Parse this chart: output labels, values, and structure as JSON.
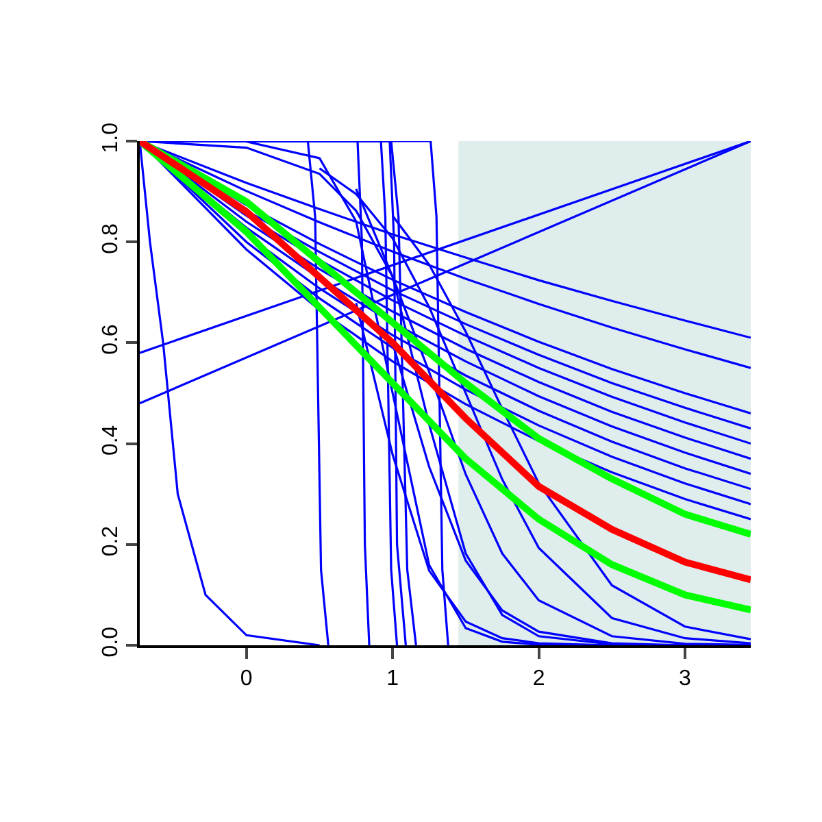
{
  "chart_data": {
    "type": "line",
    "x": [
      -0.73,
      0,
      0.5,
      1,
      1.5,
      2,
      2.5,
      3,
      3.45
    ],
    "xlim": [
      -0.73,
      3.45
    ],
    "xticks": [
      0,
      1,
      2,
      3
    ],
    "ylim": [
      0,
      1
    ],
    "yticks": [
      {
        "value": 0,
        "label": "0.0"
      },
      {
        "value": 0.2,
        "label": "0.2"
      },
      {
        "value": 0.4,
        "label": "0.4"
      },
      {
        "value": 0.6,
        "label": "0.6"
      },
      {
        "value": 0.8,
        "label": "0.8"
      },
      {
        "value": 1,
        "label": "1.0"
      }
    ],
    "grid": false,
    "marker": "none",
    "line_style": "solid",
    "bands": [
      {
        "axis": "x",
        "from": 1.45,
        "to": 3.45,
        "color": "#e0eded"
      }
    ],
    "series": [
      {
        "color": "#0000ff",
        "values": [
          1,
          0.917,
          0.865,
          0.815,
          0.769,
          0.724,
          0.683,
          0.644,
          0.61
        ]
      },
      {
        "color": "#0000ff",
        "values": [
          1,
          0.901,
          0.839,
          0.781,
          0.727,
          0.677,
          0.63,
          0.587,
          0.55
        ]
      },
      {
        "color": "#0000ff",
        "values": [
          1,
          0.873,
          0.796,
          0.725,
          0.661,
          0.602,
          0.548,
          0.5,
          0.46
        ]
      },
      {
        "color": "#0000ff",
        "values": [
          1,
          0.862,
          0.78,
          0.704,
          0.637,
          0.576,
          0.52,
          0.471,
          0.43
        ]
      },
      {
        "color": "#0000ff",
        "values": [
          1,
          0.852,
          0.764,
          0.684,
          0.614,
          0.55,
          0.493,
          0.442,
          0.4
        ]
      },
      {
        "color": "#0000ff",
        "values": [
          1,
          0.84,
          0.746,
          0.662,
          0.588,
          0.522,
          0.463,
          0.412,
          0.37
        ]
      },
      {
        "color": "#0000ff",
        "values": [
          1,
          0.828,
          0.728,
          0.64,
          0.563,
          0.494,
          0.434,
          0.382,
          0.34
        ]
      },
      {
        "color": "#0000ff",
        "values": [
          1,
          0.814,
          0.708,
          0.615,
          0.535,
          0.465,
          0.404,
          0.351,
          0.31
        ]
      },
      {
        "color": "#0000ff",
        "values": [
          1,
          0.8,
          0.688,
          0.59,
          0.507,
          0.436,
          0.374,
          0.321,
          0.28
        ]
      },
      {
        "color": "#0000ff",
        "values": [
          1,
          0.785,
          0.665,
          0.563,
          0.478,
          0.405,
          0.343,
          0.29,
          0.25
        ]
      },
      {
        "color": "#0000ff",
        "x": [
          -0.73,
          3.45
        ],
        "values": [
          0.58,
          1
        ]
      },
      {
        "color": "#0000ff",
        "x": [
          -0.73,
          3.45
        ],
        "values": [
          0.48,
          1
        ]
      },
      {
        "color": "#0000ff",
        "x": [
          0,
          0.5,
          0.75,
          1,
          1.25,
          1.5,
          1.75,
          2,
          2.5,
          3,
          3.45
        ],
        "values": [
          0.999,
          0.966,
          0.841,
          0.5,
          0.159,
          0.034,
          0.007,
          0.001,
          0,
          0,
          0
        ]
      },
      {
        "color": "#0000ff",
        "x": [
          0.75,
          1,
          1.25,
          1.5,
          1.75,
          2,
          2.5,
          3,
          3.45
        ],
        "values": [
          0.905,
          0.731,
          0.438,
          0.182,
          0.06,
          0.018,
          0.002,
          0,
          0
        ]
      },
      {
        "color": "#0000ff",
        "x": [
          -0.73,
          0,
          0.5,
          0.75,
          1,
          1.25,
          1.5,
          1.75,
          2,
          2.5,
          3,
          3.45
        ],
        "values": [
          1,
          0.987,
          0.935,
          0.862,
          0.731,
          0.542,
          0.339,
          0.182,
          0.089,
          0.018,
          0.003,
          0.001
        ]
      },
      {
        "color": "#0000ff",
        "x": [
          0.5,
          0.75,
          1,
          1.25,
          1.5,
          1.75,
          2,
          2.5,
          3,
          3.45
        ],
        "values": [
          0.946,
          0.895,
          0.807,
          0.671,
          0.5,
          0.329,
          0.193,
          0.054,
          0.014,
          0.004
        ]
      },
      {
        "color": "#0000ff",
        "x": [
          1,
          1.25,
          1.5,
          1.75,
          2,
          2.5,
          3,
          3.45
        ],
        "values": [
          0.599,
          0.354,
          0.168,
          0.069,
          0.027,
          0.004,
          0,
          0
        ]
      },
      {
        "color": "#0000ff",
        "x": [
          0.75,
          1,
          1.25,
          1.5,
          1.75,
          2,
          2.5,
          3,
          3.45
        ],
        "values": [
          0.679,
          0.378,
          0.148,
          0.047,
          0.014,
          0.004,
          0,
          0,
          0
        ]
      },
      {
        "color": "#0000ff",
        "x": [
          1,
          1.25,
          1.5,
          1.75,
          2,
          2.5,
          3,
          3.45
        ],
        "values": [
          0.852,
          0.755,
          0.622,
          0.469,
          0.321,
          0.119,
          0.037,
          0.012
        ]
      },
      {
        "color": "#0000ff",
        "x": [
          -0.73,
          -0.66,
          -0.57,
          -0.47,
          -0.28,
          0,
          0.5
        ],
        "values": [
          1,
          0.8,
          0.6,
          0.3,
          0.1,
          0.02,
          0
        ]
      },
      {
        "color": "#0000ff",
        "x": [
          -0.73,
          0.42,
          0.47,
          0.49,
          0.51,
          0.56
        ],
        "values": [
          1,
          1,
          0.85,
          0.5,
          0.15,
          0
        ]
      },
      {
        "color": "#0000ff",
        "x": [
          -0.73,
          0.76,
          0.79,
          0.8,
          0.81,
          0.84
        ],
        "values": [
          1,
          1,
          0.8,
          0.5,
          0.2,
          0
        ]
      },
      {
        "color": "#0000ff",
        "x": [
          -0.73,
          0.92,
          0.95,
          0.97,
          0.99,
          1.03
        ],
        "values": [
          1,
          1,
          0.85,
          0.5,
          0.15,
          0
        ]
      },
      {
        "color": "#0000ff",
        "x": [
          -0.73,
          0.98,
          1.01,
          1.02,
          1.03,
          1.09
        ],
        "values": [
          1,
          1,
          0.8,
          0.5,
          0.2,
          0
        ]
      },
      {
        "color": "#0000ff",
        "x": [
          -0.73,
          0.99,
          1.04,
          1.07,
          1.1,
          1.16
        ],
        "values": [
          1,
          1,
          0.85,
          0.5,
          0.15,
          0
        ]
      },
      {
        "color": "#0000ff",
        "x": [
          -0.73,
          1.26,
          1.3,
          1.32,
          1.34,
          1.38
        ],
        "values": [
          1,
          1,
          0.85,
          0.5,
          0.15,
          0
        ]
      },
      {
        "color": "#00ff00",
        "values": [
          1,
          0.88,
          0.76,
          0.64,
          0.52,
          0.41,
          0.33,
          0.26,
          0.22
        ]
      },
      {
        "color": "#00ff00",
        "values": [
          1,
          0.82,
          0.67,
          0.52,
          0.37,
          0.25,
          0.16,
          0.1,
          0.07
        ]
      },
      {
        "color": "#ff0000",
        "values": [
          1,
          0.86,
          0.73,
          0.6,
          0.45,
          0.315,
          0.23,
          0.165,
          0.13
        ]
      }
    ]
  }
}
